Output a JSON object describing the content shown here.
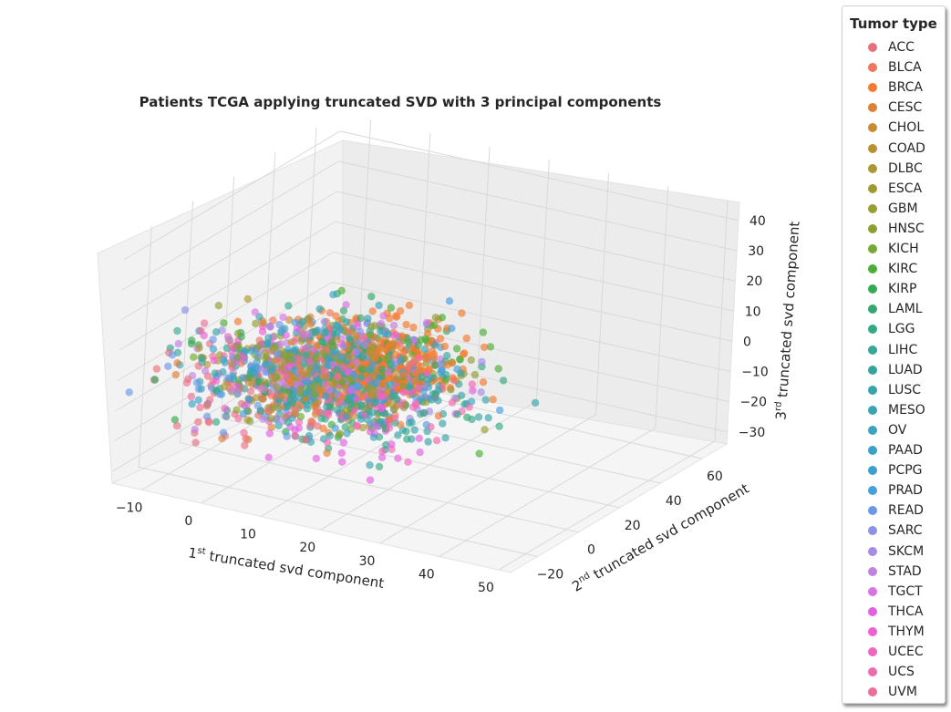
{
  "chart_data": {
    "type": "scatter",
    "dimensions": 3,
    "title": "Patients TCGA applying truncated SVD with 3 principal components",
    "xlabel": {
      "prefix": "1",
      "sup": "st",
      "text": " truncated svd component"
    },
    "ylabel": {
      "prefix": "2",
      "sup": "nd",
      "text": " truncated svd component"
    },
    "zlabel": {
      "prefix": "3",
      "sup": "rd",
      "text": " truncated svd component"
    },
    "xticks": [
      "−10",
      "0",
      "10",
      "20",
      "30",
      "40",
      "50"
    ],
    "yticks": [
      "−20",
      "0",
      "20",
      "40",
      "60"
    ],
    "zticks": [
      "−30",
      "−20",
      "−10",
      "0",
      "10",
      "20",
      "30",
      "40"
    ],
    "xlim": [
      -15,
      52
    ],
    "ylim": [
      -33,
      72
    ],
    "zlim": [
      -34,
      46
    ],
    "grid": true,
    "legend_position": "upper-right-outside",
    "legend_title": "Tumor type",
    "categories": [
      "ACC",
      "BLCA",
      "BRCA",
      "CESC",
      "CHOL",
      "COAD",
      "DLBC",
      "ESCA",
      "GBM",
      "HNSC",
      "KICH",
      "KIRC",
      "KIRP",
      "LAML",
      "LGG",
      "LIHC",
      "LUAD",
      "LUSC",
      "MESO",
      "OV",
      "PAAD",
      "PCPG",
      "PRAD",
      "READ",
      "SARC",
      "SKCM",
      "STAD",
      "TGCT",
      "THCA",
      "THYM",
      "UCEC",
      "UCS",
      "UVM"
    ],
    "colors": [
      "#e8717d",
      "#f0775c",
      "#f57a2e",
      "#de8036",
      "#cc8a33",
      "#b99131",
      "#ad9633",
      "#a29a31",
      "#979e33",
      "#8aa032",
      "#75a933",
      "#4aae38",
      "#34ab53",
      "#33a96d",
      "#35a984",
      "#34a996",
      "#34a59e",
      "#36a4a9",
      "#38a4b4",
      "#39a4bf",
      "#3aa1c7",
      "#3b9fd1",
      "#46a0e0",
      "#6c98e9",
      "#8b91e8",
      "#a68ae8",
      "#c182e4",
      "#d873e4",
      "#e45fe2",
      "#ee60d2",
      "#ef66c0",
      "#ef6aae",
      "#ee6e97"
    ],
    "point_cloud_note": "",
    "marker_alpha": 0.65
  }
}
